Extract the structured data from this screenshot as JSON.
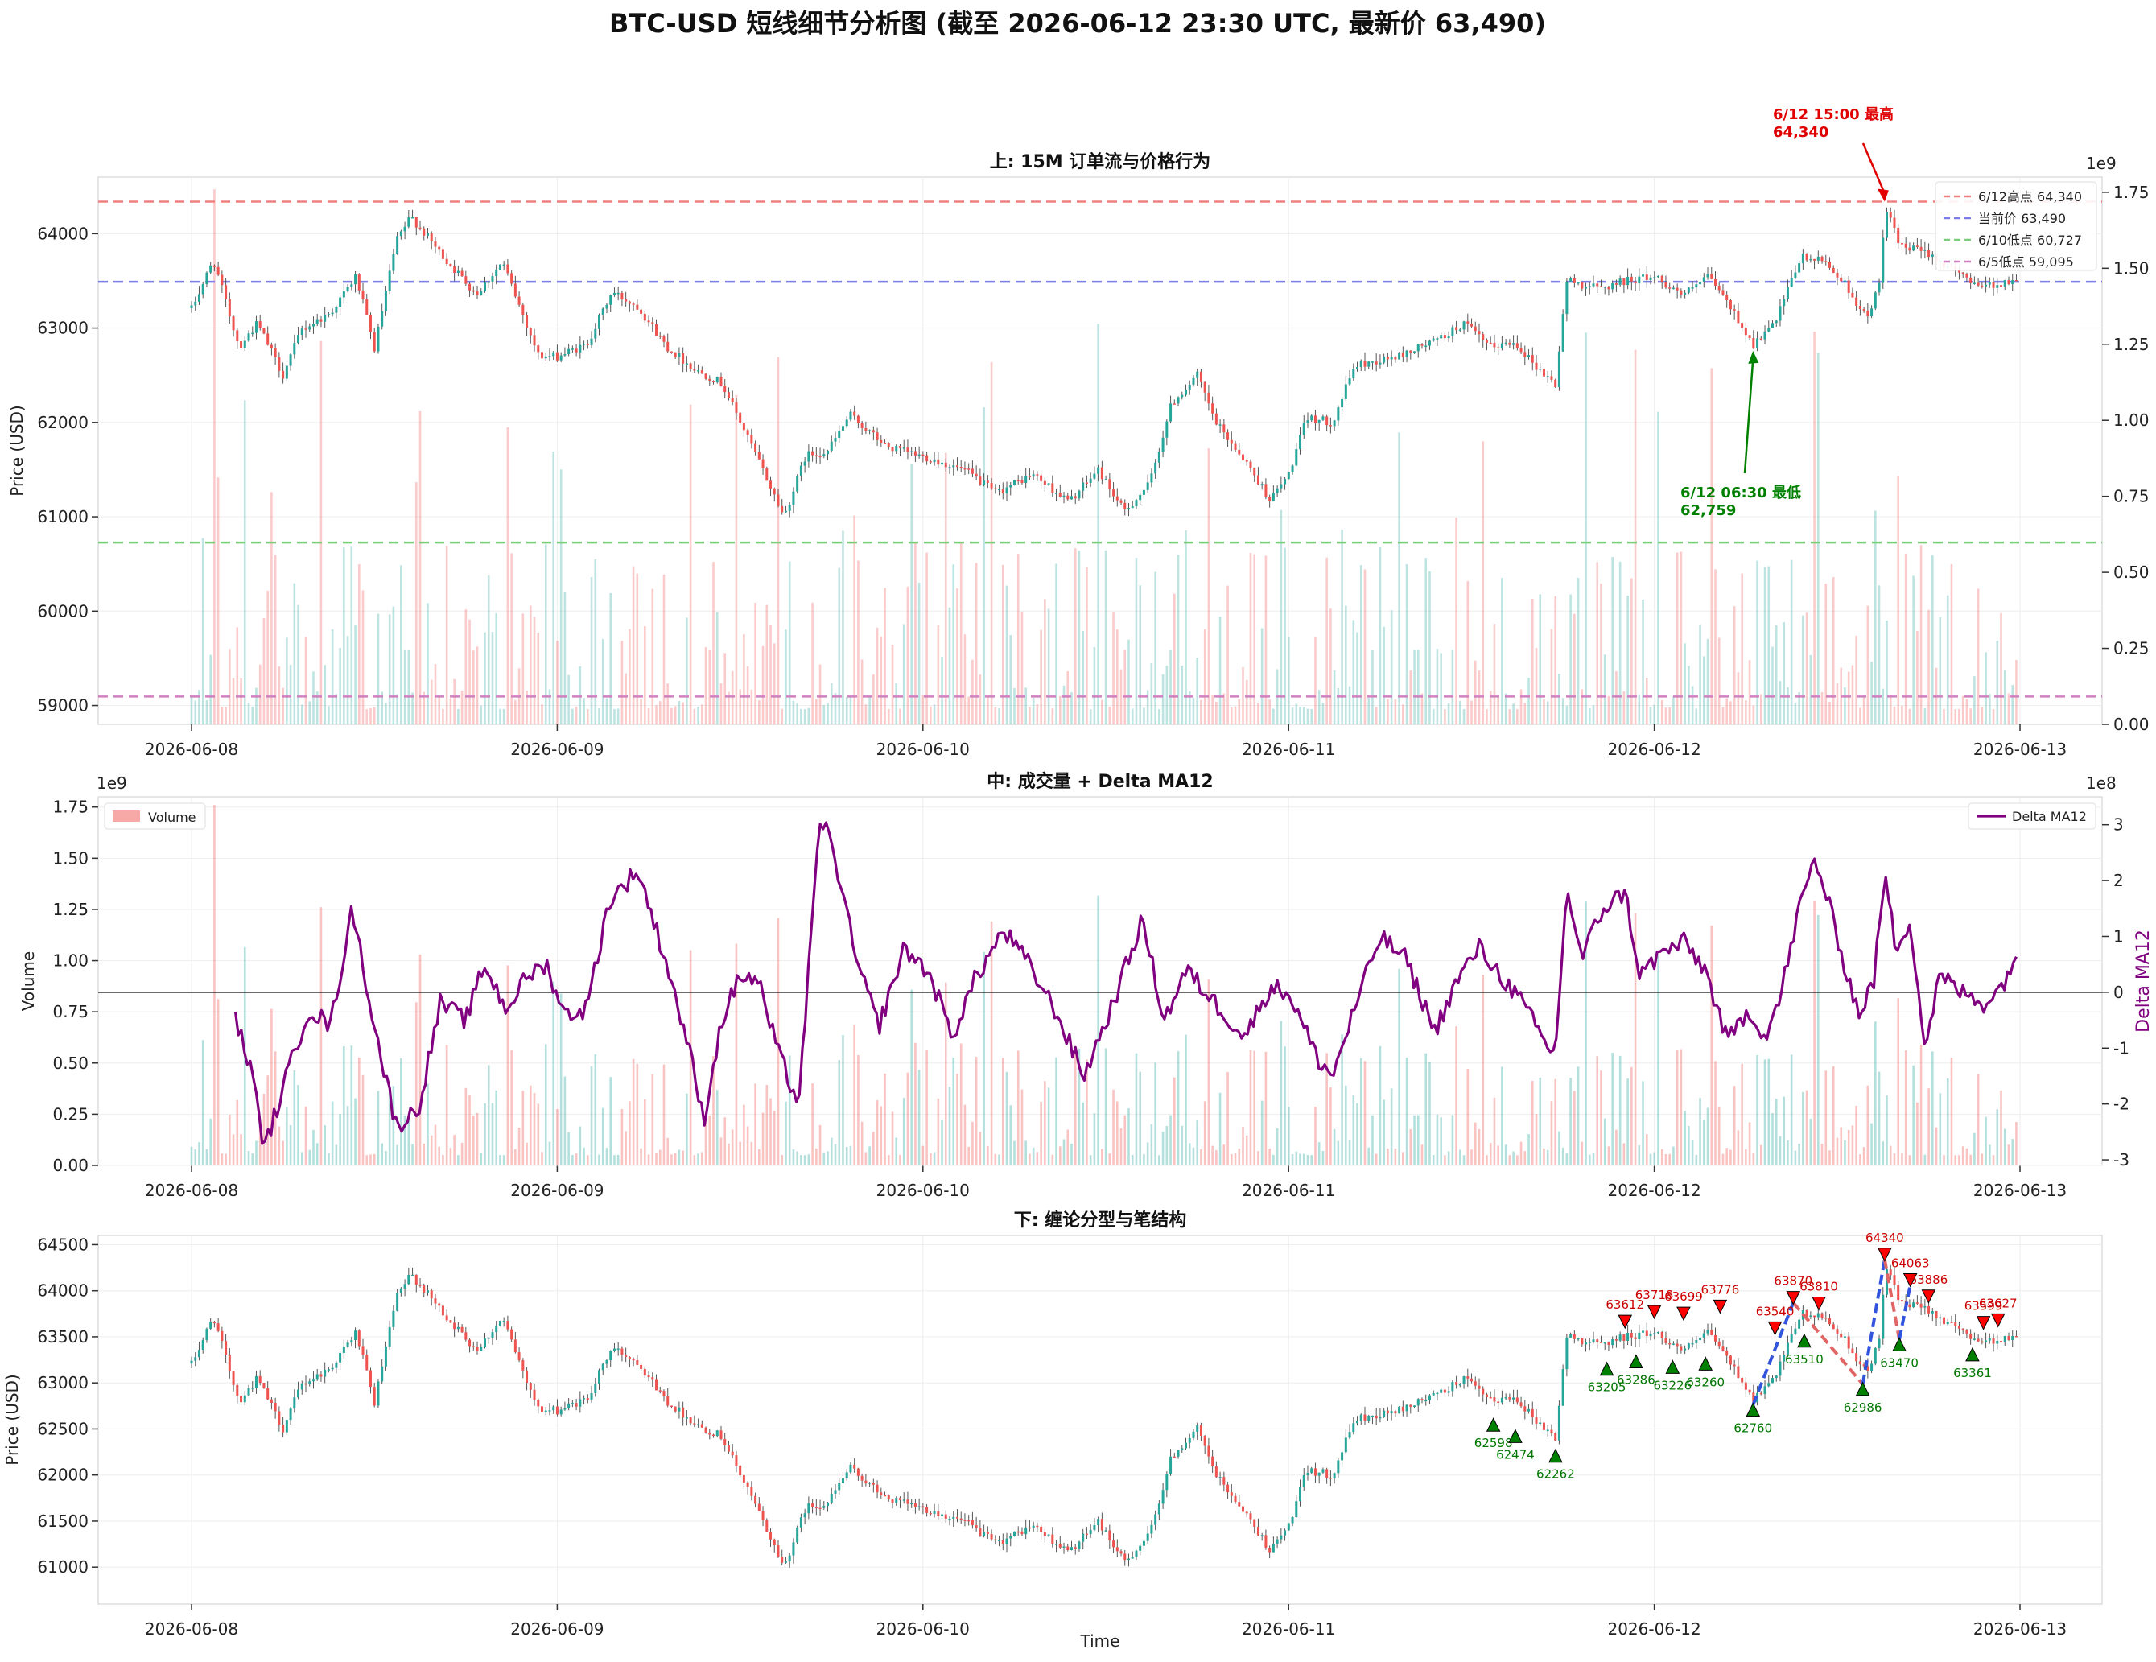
{
  "title": "BTC-USD 短线细节分析图 (截至 2026-06-12 23:30 UTC, 最新价 63,490)",
  "x_ticks": [
    "2026-06-08",
    "2026-06-09",
    "2026-06-10",
    "2026-06-11",
    "2026-06-12",
    "2026-06-13"
  ],
  "colors": {
    "up": "#26a69a",
    "down": "#ef5350",
    "delta": "#800080",
    "fractal_top": "#ff0000",
    "fractal_bottom": "#008000",
    "stroke_up": "#3355dd",
    "stroke_down": "#e06666"
  },
  "chart_data": [
    {
      "type": "candlestick",
      "title": "上: 15M 订单流与价格行为",
      "ylabel": "Price (USD)",
      "ylim": [
        58800,
        64600
      ],
      "y_ticks": [
        59000,
        60000,
        61000,
        62000,
        63000,
        64000
      ],
      "y2_exponent": "1e9",
      "y2_ticks": [
        "0.00",
        "0.25",
        "0.50",
        "0.75",
        "1.00",
        "1.25",
        "1.50",
        "1.75"
      ],
      "y2lim": [
        0,
        1.8
      ],
      "price_anchors": [
        {
          "t": 0.0,
          "p": 63200
        },
        {
          "t": 0.06,
          "p": 63720
        },
        {
          "t": 0.13,
          "p": 62800
        },
        {
          "t": 0.18,
          "p": 63050
        },
        {
          "t": 0.25,
          "p": 62500
        },
        {
          "t": 0.3,
          "p": 62980
        },
        {
          "t": 0.38,
          "p": 63160
        },
        {
          "t": 0.45,
          "p": 63550
        },
        {
          "t": 0.5,
          "p": 62780
        },
        {
          "t": 0.56,
          "p": 63920
        },
        {
          "t": 0.6,
          "p": 64180
        },
        {
          "t": 0.7,
          "p": 63700
        },
        {
          "t": 0.78,
          "p": 63360
        },
        {
          "t": 0.85,
          "p": 63700
        },
        {
          "t": 0.95,
          "p": 62700
        },
        {
          "t": 1.0,
          "p": 62700
        },
        {
          "t": 1.08,
          "p": 62820
        },
        {
          "t": 1.15,
          "p": 63380
        },
        {
          "t": 1.22,
          "p": 63230
        },
        {
          "t": 1.3,
          "p": 62800
        },
        {
          "t": 1.38,
          "p": 62550
        },
        {
          "t": 1.45,
          "p": 62420
        },
        {
          "t": 1.55,
          "p": 61600
        },
        {
          "t": 1.62,
          "p": 61000
        },
        {
          "t": 1.68,
          "p": 61650
        },
        {
          "t": 1.74,
          "p": 61700
        },
        {
          "t": 1.8,
          "p": 62080
        },
        {
          "t": 1.9,
          "p": 61740
        },
        {
          "t": 2.02,
          "p": 61620
        },
        {
          "t": 2.12,
          "p": 61480
        },
        {
          "t": 2.2,
          "p": 61250
        },
        {
          "t": 2.3,
          "p": 61450
        },
        {
          "t": 2.4,
          "p": 61160
        },
        {
          "t": 2.48,
          "p": 61500
        },
        {
          "t": 2.55,
          "p": 61050
        },
        {
          "t": 2.62,
          "p": 61350
        },
        {
          "t": 2.68,
          "p": 62200
        },
        {
          "t": 2.75,
          "p": 62500
        },
        {
          "t": 2.8,
          "p": 62000
        },
        {
          "t": 2.88,
          "p": 61600
        },
        {
          "t": 2.95,
          "p": 61180
        },
        {
          "t": 3.0,
          "p": 61450
        },
        {
          "t": 3.05,
          "p": 62050
        },
        {
          "t": 3.12,
          "p": 62000
        },
        {
          "t": 3.18,
          "p": 62600
        },
        {
          "t": 3.3,
          "p": 62700
        },
        {
          "t": 3.42,
          "p": 62900
        },
        {
          "t": 3.48,
          "p": 63050
        },
        {
          "t": 3.55,
          "p": 62800
        },
        {
          "t": 3.62,
          "p": 62850
        },
        {
          "t": 3.68,
          "p": 62580
        },
        {
          "t": 3.73,
          "p": 62400
        },
        {
          "t": 3.76,
          "p": 63500
        },
        {
          "t": 3.85,
          "p": 63420
        },
        {
          "t": 3.92,
          "p": 63500
        },
        {
          "t": 4.0,
          "p": 63550
        },
        {
          "t": 4.08,
          "p": 63350
        },
        {
          "t": 4.15,
          "p": 63550
        },
        {
          "t": 4.22,
          "p": 63150
        },
        {
          "t": 4.27,
          "p": 62820
        },
        {
          "t": 4.33,
          "p": 63050
        },
        {
          "t": 4.4,
          "p": 63750
        },
        {
          "t": 4.47,
          "p": 63700
        },
        {
          "t": 4.53,
          "p": 63420
        },
        {
          "t": 4.58,
          "p": 63100
        },
        {
          "t": 4.62,
          "p": 63500
        },
        {
          "t": 4.63,
          "p": 64340
        },
        {
          "t": 4.67,
          "p": 63860
        },
        {
          "t": 4.75,
          "p": 63800
        },
        {
          "t": 4.82,
          "p": 63600
        },
        {
          "t": 4.9,
          "p": 63450
        },
        {
          "t": 4.99,
          "p": 63490
        }
      ],
      "hlines": [
        {
          "label": "6/12高点 64,340",
          "value": 64340,
          "color": "#f08080"
        },
        {
          "label": "当前价 63,490",
          "value": 63490,
          "color": "#7b7bea"
        },
        {
          "label": "6/10低点 60,727",
          "value": 60727,
          "color": "#7ccd7c"
        },
        {
          "label": "6/5低点 59,095",
          "value": 59095,
          "color": "#d080c0"
        }
      ],
      "annotations": [
        {
          "line1": "6/12 15:00 最高",
          "line2": "64,340",
          "color": "#e00000",
          "t": 4.63,
          "value": 64340
        },
        {
          "line1": "6/12 06:30 最低",
          "line2": "62,759",
          "color": "#008000",
          "t": 4.27,
          "value": 62759
        }
      ]
    },
    {
      "type": "bar+line",
      "title": "中: 成交量 + Delta MA12",
      "ylabel": "Volume",
      "ylim": [
        0,
        1.8
      ],
      "y_exponent": "1e9",
      "y_ticks": [
        "0.00",
        "0.25",
        "0.50",
        "0.75",
        "1.00",
        "1.25",
        "1.50",
        "1.75"
      ],
      "y2label": "Delta MA12",
      "y2_exponent": "1e8",
      "y2lim": [
        -3.1,
        3.5
      ],
      "y2_ticks": [
        "-3",
        "-2",
        "-1",
        "0",
        "1",
        "2",
        "3"
      ],
      "legend_left": "Volume",
      "legend_right": "Delta MA12",
      "delta_anchors": [
        {
          "t": 0.12,
          "v": -0.5
        },
        {
          "t": 0.16,
          "v": -1.3
        },
        {
          "t": 0.2,
          "v": -2.8
        },
        {
          "t": 0.26,
          "v": -1.5
        },
        {
          "t": 0.32,
          "v": -0.3
        },
        {
          "t": 0.38,
          "v": -0.6
        },
        {
          "t": 0.44,
          "v": 1.5
        },
        {
          "t": 0.5,
          "v": -0.6
        },
        {
          "t": 0.56,
          "v": -2.4
        },
        {
          "t": 0.62,
          "v": -2.1
        },
        {
          "t": 0.68,
          "v": -0.2
        },
        {
          "t": 0.75,
          "v": -0.5
        },
        {
          "t": 0.8,
          "v": 0.5
        },
        {
          "t": 0.86,
          "v": -0.3
        },
        {
          "t": 0.92,
          "v": 0.3
        },
        {
          "t": 0.97,
          "v": 0.5
        },
        {
          "t": 1.02,
          "v": -0.4
        },
        {
          "t": 1.08,
          "v": -0.3
        },
        {
          "t": 1.14,
          "v": 1.6
        },
        {
          "t": 1.22,
          "v": 2.2
        },
        {
          "t": 1.3,
          "v": 0.5
        },
        {
          "t": 1.36,
          "v": -1.0
        },
        {
          "t": 1.4,
          "v": -2.3
        },
        {
          "t": 1.45,
          "v": -0.5
        },
        {
          "t": 1.5,
          "v": 0.3
        },
        {
          "t": 1.55,
          "v": 0.2
        },
        {
          "t": 1.6,
          "v": -1.0
        },
        {
          "t": 1.66,
          "v": -2.0
        },
        {
          "t": 1.72,
          "v": 3.2
        },
        {
          "t": 1.76,
          "v": 2.4
        },
        {
          "t": 1.82,
          "v": 0.5
        },
        {
          "t": 1.88,
          "v": -0.6
        },
        {
          "t": 1.95,
          "v": 0.8
        },
        {
          "t": 2.02,
          "v": 0.3
        },
        {
          "t": 2.08,
          "v": -0.8
        },
        {
          "t": 2.14,
          "v": 0.2
        },
        {
          "t": 2.22,
          "v": 1.1
        },
        {
          "t": 2.28,
          "v": 0.6
        },
        {
          "t": 2.36,
          "v": -0.3
        },
        {
          "t": 2.44,
          "v": -1.5
        },
        {
          "t": 2.52,
          "v": -0.2
        },
        {
          "t": 2.6,
          "v": 1.3
        },
        {
          "t": 2.66,
          "v": -0.5
        },
        {
          "t": 2.72,
          "v": 0.4
        },
        {
          "t": 2.8,
          "v": -0.2
        },
        {
          "t": 2.88,
          "v": -0.8
        },
        {
          "t": 2.95,
          "v": 0.1
        },
        {
          "t": 3.0,
          "v": 0.0
        },
        {
          "t": 3.08,
          "v": -1.2
        },
        {
          "t": 3.12,
          "v": -1.5
        },
        {
          "t": 3.18,
          "v": -0.3
        },
        {
          "t": 3.25,
          "v": 1.0
        },
        {
          "t": 3.32,
          "v": 0.6
        },
        {
          "t": 3.4,
          "v": -0.7
        },
        {
          "t": 3.46,
          "v": 0.2
        },
        {
          "t": 3.52,
          "v": 0.8
        },
        {
          "t": 3.58,
          "v": 0.3
        },
        {
          "t": 3.64,
          "v": -0.2
        },
        {
          "t": 3.7,
          "v": -0.9
        },
        {
          "t": 3.73,
          "v": -1.1
        },
        {
          "t": 3.76,
          "v": 1.9
        },
        {
          "t": 3.8,
          "v": 0.6
        },
        {
          "t": 3.86,
          "v": 1.5
        },
        {
          "t": 3.92,
          "v": 1.8
        },
        {
          "t": 3.96,
          "v": 0.3
        },
        {
          "t": 4.02,
          "v": 0.7
        },
        {
          "t": 4.08,
          "v": 0.9
        },
        {
          "t": 4.14,
          "v": 0.4
        },
        {
          "t": 4.2,
          "v": -0.9
        },
        {
          "t": 4.26,
          "v": -0.3
        },
        {
          "t": 4.3,
          "v": -0.8
        },
        {
          "t": 4.34,
          "v": -0.2
        },
        {
          "t": 4.4,
          "v": 1.6
        },
        {
          "t": 4.44,
          "v": 2.4
        },
        {
          "t": 4.48,
          "v": 1.5
        },
        {
          "t": 4.52,
          "v": 0.5
        },
        {
          "t": 4.56,
          "v": -0.4
        },
        {
          "t": 4.6,
          "v": 0.2
        },
        {
          "t": 4.63,
          "v": 2.1
        },
        {
          "t": 4.66,
          "v": 0.8
        },
        {
          "t": 4.7,
          "v": 1.3
        },
        {
          "t": 4.74,
          "v": -1.0
        },
        {
          "t": 4.78,
          "v": 0.3
        },
        {
          "t": 4.84,
          "v": 0.0
        },
        {
          "t": 4.9,
          "v": -0.2
        },
        {
          "t": 4.95,
          "v": 0.1
        },
        {
          "t": 4.99,
          "v": 0.7
        }
      ]
    },
    {
      "type": "candlestick+fractals",
      "title": "下: 缠论分型与笔结构",
      "xlabel": "Time",
      "ylabel": "Price (USD)",
      "ylim": [
        60600,
        64600
      ],
      "y_ticks": [
        61000,
        61500,
        62000,
        62500,
        63000,
        63500,
        64000,
        64500
      ],
      "fractals": [
        {
          "type": "bottom",
          "t": 3.56,
          "value": 62598,
          "label": "62598"
        },
        {
          "type": "bottom",
          "t": 3.62,
          "value": 62474,
          "label": "62474"
        },
        {
          "type": "bottom",
          "t": 3.73,
          "value": 62262,
          "label": "62262"
        },
        {
          "type": "bottom",
          "t": 3.87,
          "value": 63205,
          "label": "63205"
        },
        {
          "type": "top",
          "t": 3.92,
          "value": 63612,
          "label": "63612"
        },
        {
          "type": "bottom",
          "t": 3.95,
          "value": 63286,
          "label": "63286"
        },
        {
          "type": "top",
          "t": 4.0,
          "value": 63718,
          "label": "63718"
        },
        {
          "type": "bottom",
          "t": 4.05,
          "value": 63226,
          "label": "63226"
        },
        {
          "type": "top",
          "t": 4.08,
          "value": 63699,
          "label": "63699"
        },
        {
          "type": "bottom",
          "t": 4.14,
          "value": 63260,
          "label": "63260"
        },
        {
          "type": "top",
          "t": 4.18,
          "value": 63776,
          "label": "63776"
        },
        {
          "type": "bottom",
          "t": 4.27,
          "value": 62760,
          "label": "62760"
        },
        {
          "type": "top",
          "t": 4.33,
          "value": 63540,
          "label": "63540"
        },
        {
          "type": "top",
          "t": 4.38,
          "value": 63870,
          "label": "63870"
        },
        {
          "type": "bottom",
          "t": 4.41,
          "value": 63510,
          "label": "63510"
        },
        {
          "type": "top",
          "t": 4.45,
          "value": 63810,
          "label": "63810"
        },
        {
          "type": "bottom",
          "t": 4.57,
          "value": 62986,
          "label": "62986"
        },
        {
          "type": "top",
          "t": 4.63,
          "value": 64340,
          "label": "64340"
        },
        {
          "type": "bottom",
          "t": 4.67,
          "value": 63470,
          "label": "63470"
        },
        {
          "type": "top",
          "t": 4.7,
          "value": 64063,
          "label": "64063"
        },
        {
          "type": "top",
          "t": 4.75,
          "value": 63886,
          "label": "63886"
        },
        {
          "type": "bottom",
          "t": 4.87,
          "value": 63361,
          "label": "63361"
        },
        {
          "type": "top",
          "t": 4.9,
          "value": 63599,
          "label": "63599"
        },
        {
          "type": "top",
          "t": 4.94,
          "value": 63627,
          "label": "63627"
        }
      ],
      "strokes": [
        {
          "t1": 4.27,
          "v1": 62760,
          "t2": 4.38,
          "v2": 63870
        },
        {
          "t1": 4.38,
          "v1": 63870,
          "t2": 4.57,
          "v2": 62986
        },
        {
          "t1": 4.57,
          "v1": 62986,
          "t2": 4.63,
          "v2": 64340
        },
        {
          "t1": 4.63,
          "v1": 64340,
          "t2": 4.67,
          "v2": 63470
        },
        {
          "t1": 4.67,
          "v1": 63470,
          "t2": 4.7,
          "v2": 64063
        }
      ]
    }
  ]
}
